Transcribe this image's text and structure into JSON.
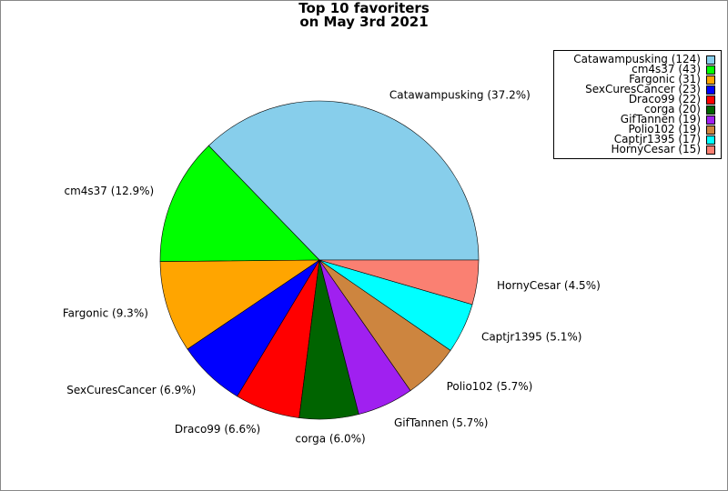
{
  "chart_data": {
    "type": "pie",
    "title_lines": [
      "Top 10 favoriters",
      "on May 3rd 2021"
    ],
    "start_angle_deg": 0,
    "direction": "counterclockwise",
    "legend_position": "top-right",
    "slices": [
      {
        "name": "Catawampusking",
        "value": 124,
        "label": "Catawampusking (37.2%)",
        "legend": "Catawampusking (124)",
        "color": "#87ceeb"
      },
      {
        "name": "cm4s37",
        "value": 43,
        "label": "cm4s37 (12.9%)",
        "legend": "cm4s37 (43)",
        "color": "#00ff00"
      },
      {
        "name": "Fargonic",
        "value": 31,
        "label": "Fargonic (9.3%)",
        "legend": "Fargonic (31)",
        "color": "#ffa500"
      },
      {
        "name": "SexCuresCancer",
        "value": 23,
        "label": "SexCuresCancer (6.9%)",
        "legend": "SexCuresCancer (23)",
        "color": "#0000ff"
      },
      {
        "name": "Draco99",
        "value": 22,
        "label": "Draco99 (6.6%)",
        "legend": "Draco99 (22)",
        "color": "#ff0000"
      },
      {
        "name": "corga",
        "value": 20,
        "label": "corga (6.0%)",
        "legend": "corga (20)",
        "color": "#006400"
      },
      {
        "name": "GifTannen",
        "value": 19,
        "label": "GifTannen (5.7%)",
        "legend": "GifTannen (19)",
        "color": "#a020f0"
      },
      {
        "name": "Polio102",
        "value": 19,
        "label": "Polio102 (5.7%)",
        "legend": "Polio102 (19)",
        "color": "#cd853f"
      },
      {
        "name": "Captjr1395",
        "value": 17,
        "label": "Captjr1395 (5.1%)",
        "legend": "Captjr1395 (17)",
        "color": "#00ffff"
      },
      {
        "name": "HornyCesar",
        "value": 15,
        "label": "HornyCesar (4.5%)",
        "legend": "HornyCesar (15)",
        "color": "#fa8072"
      }
    ]
  }
}
